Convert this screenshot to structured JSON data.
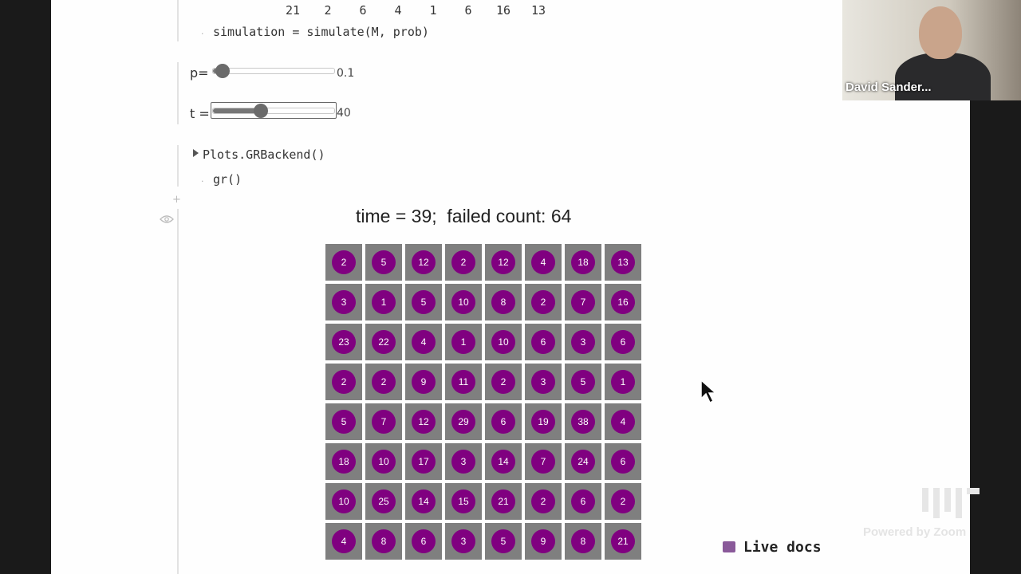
{
  "top_row_values": [
    "21",
    "2",
    "6",
    "4",
    "1",
    "6",
    "16",
    "13"
  ],
  "code": {
    "simulation_line": "simulation = simulate(M, prob)",
    "plots_line": "Plots.GRBackend()",
    "gr_line": "gr()"
  },
  "sliders": {
    "p": {
      "label": "p=",
      "value_text": "0.1",
      "fraction": 0.08
    },
    "t": {
      "label": "t =",
      "value_text": "40",
      "fraction": 0.4
    }
  },
  "chart_data": {
    "type": "heatmap",
    "title": "time = 39;  failed count: 64",
    "rows": [
      [
        2,
        5,
        12,
        2,
        12,
        4,
        18,
        13
      ],
      [
        3,
        1,
        5,
        10,
        8,
        2,
        7,
        16
      ],
      [
        23,
        22,
        4,
        1,
        10,
        6,
        3,
        6
      ],
      [
        2,
        2,
        9,
        11,
        2,
        3,
        5,
        1
      ],
      [
        5,
        7,
        12,
        29,
        6,
        19,
        38,
        4
      ],
      [
        18,
        10,
        17,
        3,
        14,
        7,
        24,
        6
      ],
      [
        10,
        25,
        14,
        15,
        21,
        2,
        6,
        2
      ],
      [
        4,
        8,
        6,
        3,
        5,
        9,
        8,
        21
      ]
    ],
    "cell_color": "#7f7f7f",
    "marker_color": "#800080",
    "label_color": "#ffffff"
  },
  "live_docs_label": "Live docs",
  "video": {
    "participant_name": "David Sander..."
  },
  "watermark": "Powered by Zoom"
}
